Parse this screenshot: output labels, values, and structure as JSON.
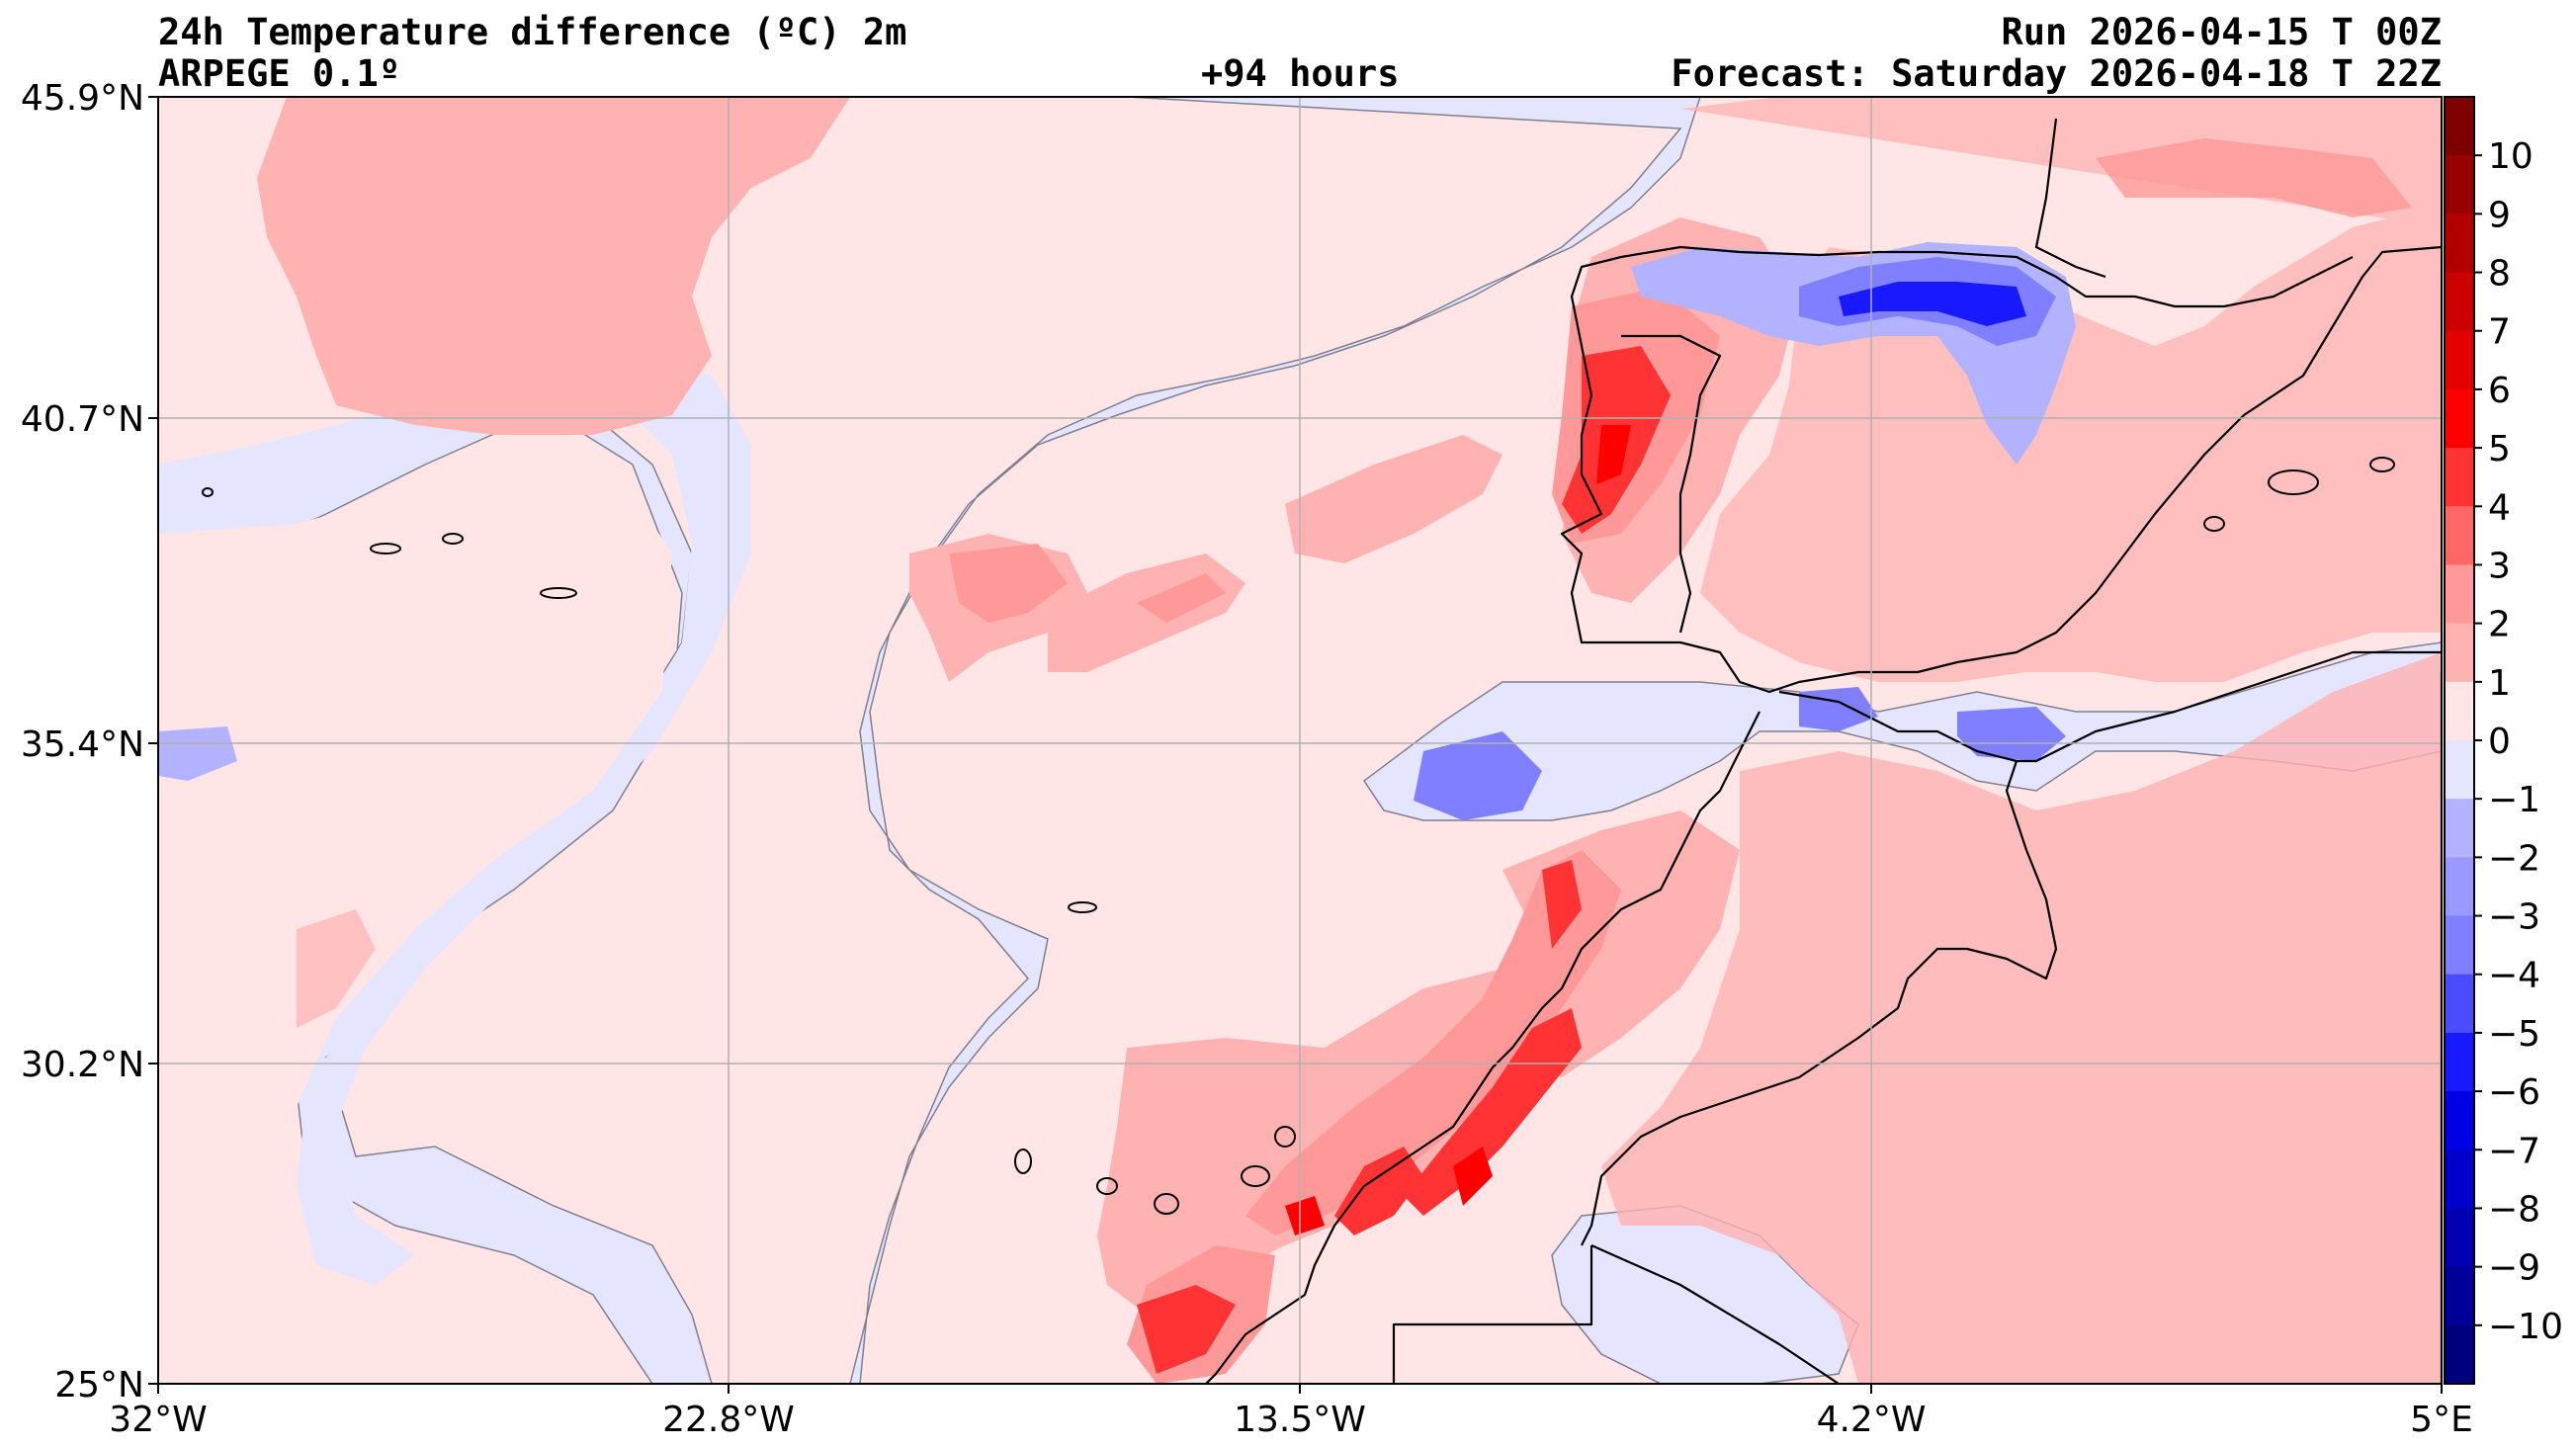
{
  "header": {
    "title": "24h Temperature difference (ºC) 2m",
    "model": "ARPEGE 0.1º",
    "lead": "+94 hours",
    "run": "Run 2026-04-15 T 00Z",
    "forecast": "Forecast: Saturday 2026-04-18 T 22Z"
  },
  "map": {
    "lat_labels": [
      "45.9°N",
      "40.7°N",
      "35.4°N",
      "30.2°N",
      "25°N"
    ],
    "lon_labels": [
      "32°W",
      "22.8°W",
      "13.5°W",
      "4.2°W",
      "5°E"
    ],
    "grid": true,
    "colors": {
      "band_0_1": "#ffe5e5",
      "band_m1_0": "#e5e5ff",
      "band_1_2": "#ffb2b2",
      "band_2_3": "#ff9999",
      "band_3_4": "#ff6666",
      "band_4_5": "#ff3333",
      "band_5_6": "#ff0000",
      "band_m2_m1": "#b2b2ff",
      "band_m3_m2": "#7f7fff",
      "band_m4_m3": "#4c4cff",
      "band_m5_m4": "#1919ff",
      "coast": "#000000",
      "grid": "#b0b0b0"
    }
  },
  "colorbar": {
    "ticks": [
      "10",
      "9",
      "8",
      "7",
      "6",
      "5",
      "4",
      "3",
      "2",
      "1",
      "0",
      "−1",
      "−2",
      "−3",
      "−4",
      "−5",
      "−6",
      "−7",
      "−8",
      "−9",
      "−10"
    ],
    "colors": [
      "#7f0000",
      "#990000",
      "#b20000",
      "#cc0000",
      "#e50000",
      "#ff0000",
      "#ff3333",
      "#ff6666",
      "#ff9999",
      "#ffb2b2",
      "#ffe5e5",
      "#e5e5ff",
      "#b2b2ff",
      "#9999ff",
      "#7f7fff",
      "#4c4cff",
      "#1919ff",
      "#0000e5",
      "#0000cc",
      "#0000b2",
      "#000099",
      "#00007f"
    ]
  }
}
